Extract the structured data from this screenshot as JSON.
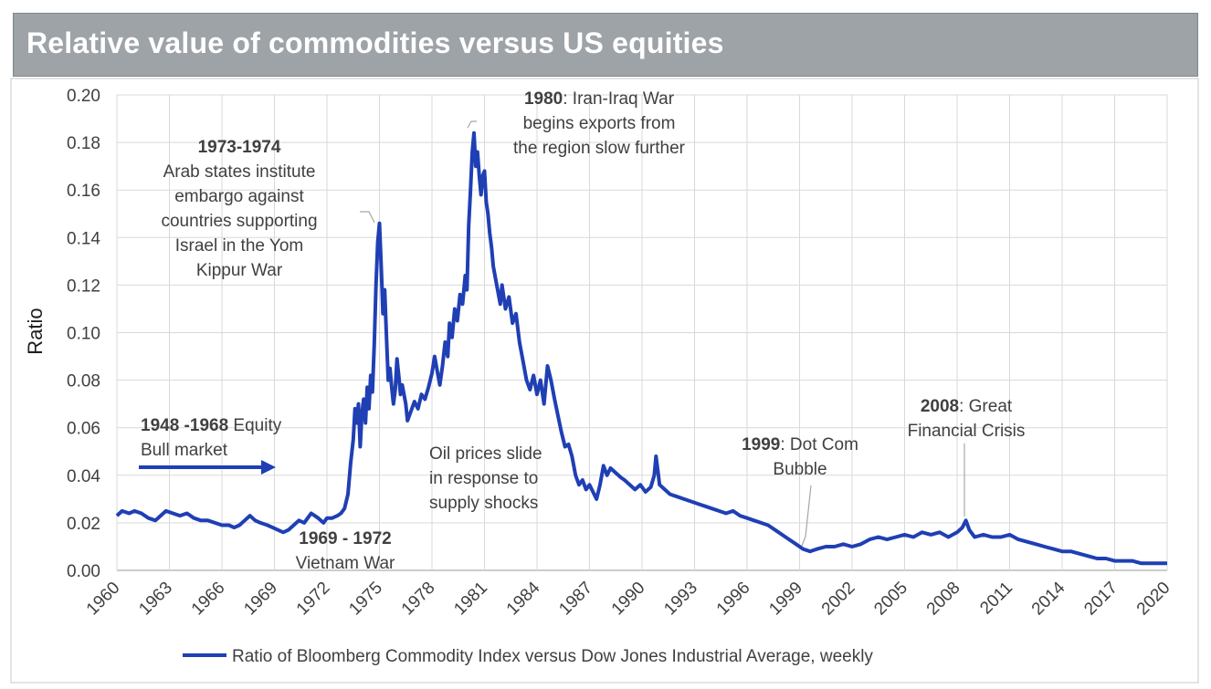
{
  "header": {
    "title": "Relative value of commodities versus US equities"
  },
  "chart_data": {
    "type": "line",
    "ylabel": "Ratio",
    "xlabel": "",
    "xlim": [
      1960,
      2020
    ],
    "ylim": [
      0.0,
      0.2
    ],
    "grid": true,
    "legend_position": "bottom",
    "x_ticks": [
      "1960",
      "1963",
      "1966",
      "1969",
      "1972",
      "1975",
      "1978",
      "1981",
      "1984",
      "1987",
      "1990",
      "1993",
      "1996",
      "1999",
      "2002",
      "2005",
      "2008",
      "2011",
      "2014",
      "2017",
      "2020"
    ],
    "y_ticks": [
      "0.00",
      "0.02",
      "0.04",
      "0.06",
      "0.08",
      "0.10",
      "0.12",
      "0.14",
      "0.16",
      "0.18",
      "0.20"
    ],
    "series": [
      {
        "name": "Ratio of Bloomberg Commodity Index versus Dow Jones Industrial Average, weekly",
        "color": "#1f3fb4",
        "points": [
          [
            1960.0,
            0.023
          ],
          [
            1960.3,
            0.025
          ],
          [
            1960.7,
            0.024
          ],
          [
            1961.0,
            0.025
          ],
          [
            1961.4,
            0.024
          ],
          [
            1961.8,
            0.022
          ],
          [
            1962.2,
            0.021
          ],
          [
            1962.5,
            0.023
          ],
          [
            1962.8,
            0.025
          ],
          [
            1963.2,
            0.024
          ],
          [
            1963.6,
            0.023
          ],
          [
            1964.0,
            0.024
          ],
          [
            1964.4,
            0.022
          ],
          [
            1964.8,
            0.021
          ],
          [
            1965.2,
            0.021
          ],
          [
            1965.6,
            0.02
          ],
          [
            1966.0,
            0.019
          ],
          [
            1966.4,
            0.019
          ],
          [
            1966.7,
            0.018
          ],
          [
            1967.0,
            0.019
          ],
          [
            1967.3,
            0.021
          ],
          [
            1967.6,
            0.023
          ],
          [
            1967.9,
            0.021
          ],
          [
            1968.2,
            0.02
          ],
          [
            1968.6,
            0.019
          ],
          [
            1968.9,
            0.018
          ],
          [
            1969.2,
            0.017
          ],
          [
            1969.5,
            0.016
          ],
          [
            1969.8,
            0.017
          ],
          [
            1970.1,
            0.019
          ],
          [
            1970.4,
            0.021
          ],
          [
            1970.7,
            0.02
          ],
          [
            1970.9,
            0.022
          ],
          [
            1971.1,
            0.024
          ],
          [
            1971.3,
            0.023
          ],
          [
            1971.5,
            0.022
          ],
          [
            1971.8,
            0.02
          ],
          [
            1972.0,
            0.022
          ],
          [
            1972.3,
            0.022
          ],
          [
            1972.6,
            0.023
          ],
          [
            1972.8,
            0.024
          ],
          [
            1973.0,
            0.026
          ],
          [
            1973.2,
            0.032
          ],
          [
            1973.35,
            0.045
          ],
          [
            1973.5,
            0.055
          ],
          [
            1973.6,
            0.068
          ],
          [
            1973.7,
            0.062
          ],
          [
            1973.8,
            0.07
          ],
          [
            1973.9,
            0.052
          ],
          [
            1974.0,
            0.066
          ],
          [
            1974.1,
            0.072
          ],
          [
            1974.2,
            0.062
          ],
          [
            1974.3,
            0.077
          ],
          [
            1974.4,
            0.068
          ],
          [
            1974.5,
            0.082
          ],
          [
            1974.6,
            0.075
          ],
          [
            1974.7,
            0.095
          ],
          [
            1974.8,
            0.12
          ],
          [
            1974.9,
            0.138
          ],
          [
            1975.0,
            0.146
          ],
          [
            1975.1,
            0.128
          ],
          [
            1975.2,
            0.108
          ],
          [
            1975.3,
            0.118
          ],
          [
            1975.4,
            0.098
          ],
          [
            1975.5,
            0.08
          ],
          [
            1975.6,
            0.085
          ],
          [
            1975.7,
            0.077
          ],
          [
            1975.8,
            0.07
          ],
          [
            1975.9,
            0.076
          ],
          [
            1976.0,
            0.089
          ],
          [
            1976.1,
            0.082
          ],
          [
            1976.2,
            0.074
          ],
          [
            1976.3,
            0.078
          ],
          [
            1976.5,
            0.07
          ],
          [
            1976.6,
            0.063
          ],
          [
            1976.8,
            0.067
          ],
          [
            1977.0,
            0.071
          ],
          [
            1977.2,
            0.068
          ],
          [
            1977.4,
            0.074
          ],
          [
            1977.6,
            0.072
          ],
          [
            1977.8,
            0.077
          ],
          [
            1978.0,
            0.083
          ],
          [
            1978.15,
            0.09
          ],
          [
            1978.3,
            0.084
          ],
          [
            1978.45,
            0.078
          ],
          [
            1978.6,
            0.086
          ],
          [
            1978.75,
            0.096
          ],
          [
            1978.9,
            0.09
          ],
          [
            1979.0,
            0.104
          ],
          [
            1979.15,
            0.098
          ],
          [
            1979.3,
            0.11
          ],
          [
            1979.45,
            0.105
          ],
          [
            1979.6,
            0.116
          ],
          [
            1979.75,
            0.112
          ],
          [
            1979.9,
            0.124
          ],
          [
            1980.0,
            0.118
          ],
          [
            1980.1,
            0.145
          ],
          [
            1980.2,
            0.16
          ],
          [
            1980.3,
            0.176
          ],
          [
            1980.4,
            0.184
          ],
          [
            1980.5,
            0.17
          ],
          [
            1980.6,
            0.176
          ],
          [
            1980.7,
            0.166
          ],
          [
            1980.8,
            0.158
          ],
          [
            1980.9,
            0.166
          ],
          [
            1981.0,
            0.168
          ],
          [
            1981.1,
            0.155
          ],
          [
            1981.2,
            0.15
          ],
          [
            1981.3,
            0.142
          ],
          [
            1981.4,
            0.136
          ],
          [
            1981.5,
            0.128
          ],
          [
            1981.7,
            0.12
          ],
          [
            1981.9,
            0.112
          ],
          [
            1982.0,
            0.12
          ],
          [
            1982.2,
            0.11
          ],
          [
            1982.4,
            0.115
          ],
          [
            1982.6,
            0.104
          ],
          [
            1982.8,
            0.108
          ],
          [
            1983.0,
            0.096
          ],
          [
            1983.2,
            0.088
          ],
          [
            1983.4,
            0.08
          ],
          [
            1983.6,
            0.076
          ],
          [
            1983.8,
            0.082
          ],
          [
            1984.0,
            0.074
          ],
          [
            1984.2,
            0.08
          ],
          [
            1984.4,
            0.07
          ],
          [
            1984.6,
            0.086
          ],
          [
            1984.8,
            0.08
          ],
          [
            1985.0,
            0.072
          ],
          [
            1985.2,
            0.065
          ],
          [
            1985.4,
            0.058
          ],
          [
            1985.6,
            0.052
          ],
          [
            1985.8,
            0.053
          ],
          [
            1986.0,
            0.048
          ],
          [
            1986.2,
            0.04
          ],
          [
            1986.4,
            0.036
          ],
          [
            1986.6,
            0.038
          ],
          [
            1986.8,
            0.034
          ],
          [
            1987.0,
            0.036
          ],
          [
            1987.2,
            0.033
          ],
          [
            1987.4,
            0.03
          ],
          [
            1987.6,
            0.036
          ],
          [
            1987.8,
            0.044
          ],
          [
            1988.0,
            0.04
          ],
          [
            1988.2,
            0.043
          ],
          [
            1988.5,
            0.041
          ],
          [
            1988.8,
            0.039
          ],
          [
            1989.0,
            0.038
          ],
          [
            1989.3,
            0.036
          ],
          [
            1989.6,
            0.034
          ],
          [
            1989.9,
            0.036
          ],
          [
            1990.2,
            0.033
          ],
          [
            1990.5,
            0.035
          ],
          [
            1990.7,
            0.04
          ],
          [
            1990.8,
            0.048
          ],
          [
            1990.9,
            0.042
          ],
          [
            1991.0,
            0.036
          ],
          [
            1991.3,
            0.034
          ],
          [
            1991.6,
            0.032
          ],
          [
            1992.0,
            0.031
          ],
          [
            1992.4,
            0.03
          ],
          [
            1992.8,
            0.029
          ],
          [
            1993.2,
            0.028
          ],
          [
            1993.6,
            0.027
          ],
          [
            1994.0,
            0.026
          ],
          [
            1994.4,
            0.025
          ],
          [
            1994.8,
            0.024
          ],
          [
            1995.2,
            0.025
          ],
          [
            1995.6,
            0.023
          ],
          [
            1996.0,
            0.022
          ],
          [
            1996.4,
            0.021
          ],
          [
            1996.8,
            0.02
          ],
          [
            1997.2,
            0.019
          ],
          [
            1997.6,
            0.017
          ],
          [
            1998.0,
            0.015
          ],
          [
            1998.4,
            0.013
          ],
          [
            1998.8,
            0.011
          ],
          [
            1999.2,
            0.009
          ],
          [
            1999.6,
            0.008
          ],
          [
            2000.0,
            0.009
          ],
          [
            2000.5,
            0.01
          ],
          [
            2001.0,
            0.01
          ],
          [
            2001.5,
            0.011
          ],
          [
            2002.0,
            0.01
          ],
          [
            2002.5,
            0.011
          ],
          [
            2003.0,
            0.013
          ],
          [
            2003.5,
            0.014
          ],
          [
            2004.0,
            0.013
          ],
          [
            2004.5,
            0.014
          ],
          [
            2005.0,
            0.015
          ],
          [
            2005.5,
            0.014
          ],
          [
            2006.0,
            0.016
          ],
          [
            2006.5,
            0.015
          ],
          [
            2007.0,
            0.016
          ],
          [
            2007.5,
            0.014
          ],
          [
            2008.0,
            0.016
          ],
          [
            2008.3,
            0.018
          ],
          [
            2008.5,
            0.021
          ],
          [
            2008.7,
            0.017
          ],
          [
            2009.0,
            0.014
          ],
          [
            2009.5,
            0.015
          ],
          [
            2010.0,
            0.014
          ],
          [
            2010.5,
            0.014
          ],
          [
            2011.0,
            0.015
          ],
          [
            2011.5,
            0.013
          ],
          [
            2012.0,
            0.012
          ],
          [
            2012.5,
            0.011
          ],
          [
            2013.0,
            0.01
          ],
          [
            2013.5,
            0.009
          ],
          [
            2014.0,
            0.008
          ],
          [
            2014.5,
            0.008
          ],
          [
            2015.0,
            0.007
          ],
          [
            2015.5,
            0.006
          ],
          [
            2016.0,
            0.005
          ],
          [
            2016.5,
            0.005
          ],
          [
            2017.0,
            0.004
          ],
          [
            2017.5,
            0.004
          ],
          [
            2018.0,
            0.004
          ],
          [
            2018.5,
            0.003
          ],
          [
            2019.0,
            0.003
          ],
          [
            2019.5,
            0.003
          ],
          [
            2020.0,
            0.003
          ]
        ]
      }
    ],
    "annotations": [
      {
        "bold": "1980",
        "lines": [
          ": Iran-Iraq War",
          "begins exports from",
          "the region slow further"
        ]
      },
      {
        "bold": "1973-1974",
        "lines": [
          "Arab states institute",
          "embargo against",
          "countries supporting",
          "Israel in the Yom",
          "Kippur War"
        ]
      },
      {
        "bold": "1948 -1968",
        "lines": [
          " Equity",
          "Bull market"
        ]
      },
      {
        "bold": "1969 - 1972",
        "lines": [
          "Vietnam War"
        ]
      },
      {
        "bold": "",
        "lines": [
          "Oil prices slide",
          "in response to",
          "supply shocks"
        ]
      },
      {
        "bold": "1999",
        "lines": [
          ": Dot Com",
          "Bubble"
        ]
      },
      {
        "bold": "2008",
        "lines": [
          ": Great",
          "Financial Crisis"
        ]
      }
    ]
  }
}
